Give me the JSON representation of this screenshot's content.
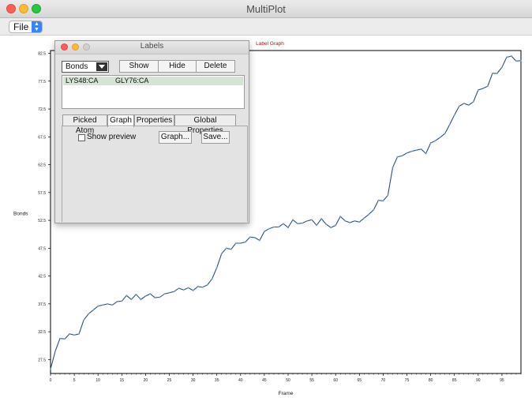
{
  "window": {
    "title": "MultiPlot"
  },
  "menu": {
    "file_label": "File"
  },
  "chart_data": {
    "type": "line",
    "title": "Label Graph",
    "xlabel": "Frame",
    "ylabel": "Bonds",
    "xlim": [
      0,
      99
    ],
    "ylim": [
      25,
      83
    ],
    "xticks": [
      0,
      5,
      10,
      15,
      20,
      25,
      30,
      35,
      40,
      45,
      50,
      55,
      60,
      65,
      70,
      75,
      80,
      85,
      90,
      95
    ],
    "yticks": [
      27.5,
      32.5,
      37.5,
      42.5,
      47.5,
      52.5,
      57.5,
      62.5,
      67.5,
      72.5,
      77.5,
      82.5
    ],
    "x": [
      0,
      1,
      2,
      3,
      4,
      5,
      6,
      7,
      8,
      9,
      10,
      11,
      12,
      13,
      14,
      15,
      16,
      17,
      18,
      19,
      20,
      21,
      22,
      23,
      24,
      25,
      26,
      27,
      28,
      29,
      30,
      31,
      32,
      33,
      34,
      35,
      36,
      37,
      38,
      39,
      40,
      41,
      42,
      43,
      44,
      45,
      46,
      47,
      48,
      49,
      50,
      51,
      52,
      53,
      54,
      55,
      56,
      57,
      58,
      59,
      60,
      61,
      62,
      63,
      64,
      65,
      66,
      67,
      68,
      69,
      70,
      71,
      72,
      73,
      74,
      75,
      76,
      77,
      78,
      79,
      80,
      81,
      82,
      83,
      84,
      85,
      86,
      87,
      88,
      89,
      90,
      91,
      92,
      93,
      94,
      95,
      96,
      97,
      98,
      99
    ],
    "series": [
      {
        "values": [
          25.8,
          29.0,
          31.3,
          31.2,
          32.1,
          31.9,
          32.1,
          34.6,
          35.7,
          36.4,
          37.1,
          37.3,
          37.5,
          37.3,
          37.9,
          38.0,
          39.0,
          38.3,
          39.2,
          38.3,
          38.9,
          39.3,
          38.6,
          38.7,
          39.3,
          39.5,
          39.7,
          40.3,
          40.0,
          40.4,
          39.9,
          40.6,
          40.5,
          40.9,
          42.0,
          44.0,
          46.5,
          47.5,
          47.3,
          48.4,
          48.4,
          48.6,
          49.5,
          49.4,
          48.9,
          50.5,
          51.0,
          51.3,
          51.3,
          51.9,
          51.2,
          52.6,
          51.9,
          52.0,
          52.4,
          52.6,
          51.6,
          52.8,
          51.8,
          51.2,
          51.6,
          53.2,
          52.4,
          52.1,
          52.4,
          52.2,
          52.9,
          53.6,
          54.4,
          56.1,
          56.0,
          57.0,
          62.0,
          63.9,
          64.1,
          64.6,
          64.9,
          65.1,
          65.3,
          64.5,
          66.4,
          66.8,
          67.4,
          68.1,
          69.7,
          71.4,
          73.0,
          73.5,
          73.2,
          73.8,
          75.9,
          76.2,
          76.6,
          78.9,
          78.9,
          80.0,
          81.8,
          82.0,
          81.1,
          81.2
        ]
      }
    ]
  },
  "labels_panel": {
    "title": "Labels",
    "category_value": "Bonds",
    "show_label": "Show",
    "hide_label": "Hide",
    "delete_label": "Delete",
    "list_row": {
      "atom1": "LYS48:CA",
      "atom2": "GLY76:CA"
    },
    "tabs": [
      "Picked Atom",
      "Graph",
      "Properties",
      "Global Properties"
    ],
    "show_preview_label": "Show preview",
    "graph_button": "Graph...",
    "save_button": "Save..."
  },
  "colors": {
    "line": "#2f4f7f",
    "marker": "#6f9fd3",
    "title": "#b0101a"
  }
}
